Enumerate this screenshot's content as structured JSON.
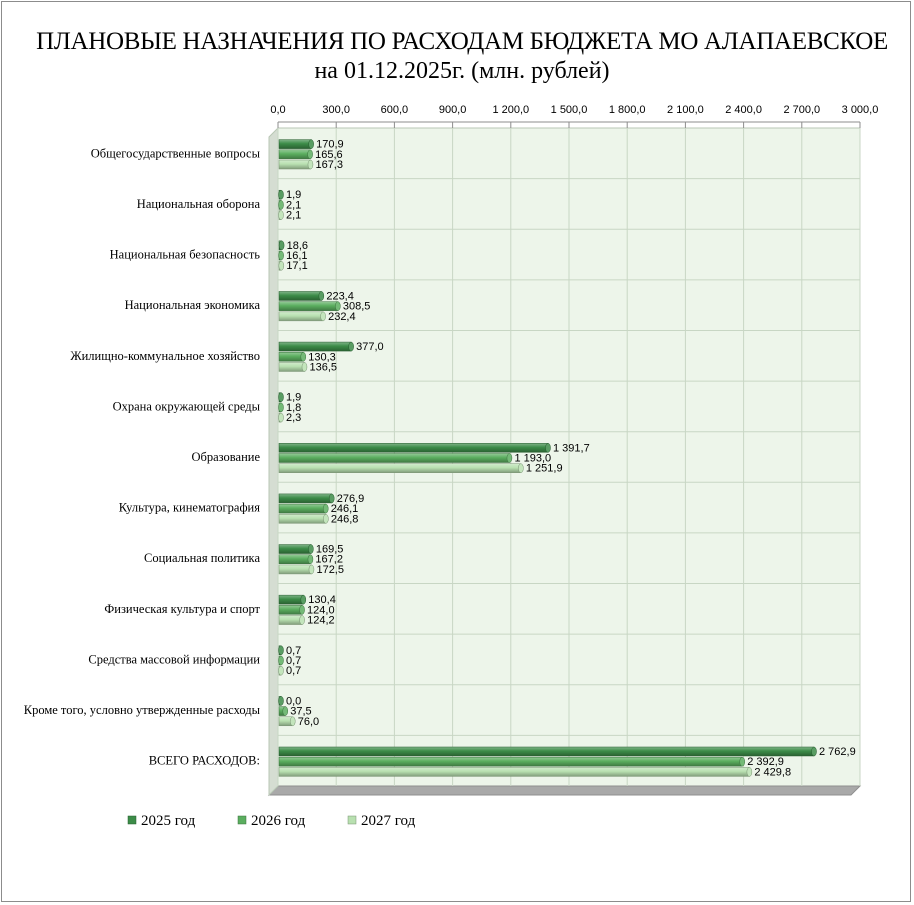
{
  "title": "ПЛАНОВЫЕ НАЗНАЧЕНИЯ ПО РАСХОДАМ БЮДЖЕТА МО АЛАПАЕВСКОЕ",
  "subtitle": "на 01.12.2025г. (млн. рублей)",
  "colors": {
    "s2025": "#3c8c48",
    "s2026": "#5bae5f",
    "s2027": "#b8e0b0",
    "plot_bg": "#edf5ea",
    "grid": "#c8d6c4"
  },
  "chart_data": {
    "type": "bar",
    "orientation": "horizontal",
    "title": "ПЛАНОВЫЕ НАЗНАЧЕНИЯ ПО РАСХОДАМ БЮДЖЕТА МО АЛАПАЕВСКОЕ на 01.12.2025г. (млн. рублей)",
    "xlim": [
      0,
      3000
    ],
    "ticks": [
      0,
      300,
      600,
      900,
      1200,
      1500,
      1800,
      2100,
      2400,
      2700,
      3000
    ],
    "tick_labels": [
      "0,0",
      "300,0",
      "600,0",
      "900,0",
      "1 200,0",
      "1 500,0",
      "1 800,0",
      "2 100,0",
      "2 400,0",
      "2 700,0",
      "3 000,0"
    ],
    "legend_position": "bottom-left",
    "categories": [
      "Общегосударственные вопросы",
      "Национальная оборона",
      "Национальная безопасность",
      "Национальная экономика",
      "Жилищно-коммунальное хозяйство",
      "Охрана окружающей среды",
      "Образование",
      "Культура, кинематография",
      "Социальная политика",
      "Физическая культура и спорт",
      "Средства массовой информации",
      "Кроме того, условно утвержденные расходы",
      "ВСЕГО РАСХОДОВ:"
    ],
    "series": [
      {
        "name": "2025 год",
        "values": [
          170.9,
          1.9,
          18.6,
          223.4,
          377.0,
          1.9,
          1391.7,
          276.9,
          169.5,
          130.4,
          0.7,
          0.0,
          2762.9
        ],
        "labels": [
          "170,9",
          "1,9",
          "18,6",
          "223,4",
          "377,0",
          "1,9",
          "1 391,7",
          "276,9",
          "169,5",
          "130,4",
          "0,7",
          "0,0",
          "2 762,9"
        ]
      },
      {
        "name": "2026 год",
        "values": [
          165.6,
          2.1,
          16.1,
          308.5,
          130.3,
          1.8,
          1193.0,
          246.1,
          167.2,
          124.0,
          0.7,
          37.5,
          2392.9
        ],
        "labels": [
          "165,6",
          "2,1",
          "16,1",
          "308,5",
          "130,3",
          "1,8",
          "1 193,0",
          "246,1",
          "167,2",
          "124,0",
          "0,7",
          "37,5",
          "2 392,9"
        ]
      },
      {
        "name": "2027 год",
        "values": [
          167.3,
          2.1,
          17.1,
          232.4,
          136.5,
          2.3,
          1251.9,
          246.8,
          172.5,
          124.2,
          0.7,
          76.0,
          2429.8
        ],
        "labels": [
          "167,3",
          "2,1",
          "17,1",
          "232,4",
          "136,5",
          "2,3",
          "1 251,9",
          "246,8",
          "172,5",
          "124,2",
          "0,7",
          "76,0",
          "2 429,8"
        ]
      }
    ]
  }
}
